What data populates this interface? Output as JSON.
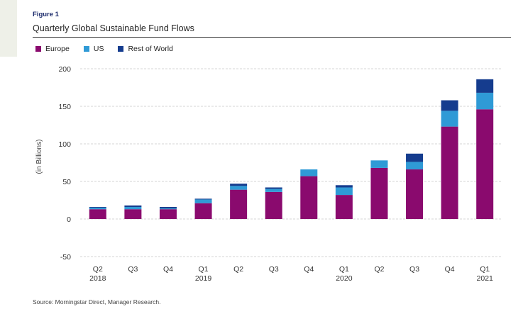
{
  "figure_label": "Figure 1",
  "title": "Quarterly Global Sustainable Fund Flows",
  "source": "Source: Morningstar Direct, Manager Research.",
  "colors": {
    "europe": "#8a0a6e",
    "us": "#2f9ad6",
    "rest_of_world": "#153c8e",
    "grid": "#c8c8c8",
    "panel": "#eef0e8"
  },
  "chart_data": {
    "type": "bar",
    "stacked": true,
    "title": "Quarterly Global Sustainable Fund Flows",
    "ylabel": "(in Billions)",
    "xlabel": "",
    "ylim": [
      -50,
      200
    ],
    "yticks": [
      -50,
      0,
      50,
      100,
      150,
      200
    ],
    "grid": true,
    "legend_position": "top-left",
    "categories": [
      "Q2",
      "Q3",
      "Q4",
      "Q1",
      "Q2",
      "Q3",
      "Q4",
      "Q1",
      "Q2",
      "Q3",
      "Q4",
      "Q1"
    ],
    "year_labels": [
      "2018",
      "",
      "",
      "2019",
      "",
      "",
      "",
      "2020",
      "",
      "",
      "",
      "2021"
    ],
    "series": [
      {
        "name": "Europe",
        "values": [
          13,
          13,
          13,
          21,
          39,
          36,
          57,
          32,
          68,
          66,
          123,
          146
        ]
      },
      {
        "name": "US",
        "values": [
          2,
          3,
          1,
          5,
          5,
          4,
          9,
          10,
          10,
          10,
          21,
          22
        ]
      },
      {
        "name": "Rest of World",
        "values": [
          1,
          2,
          2,
          1,
          3,
          2,
          0,
          3,
          0,
          11,
          14,
          18
        ]
      }
    ]
  }
}
